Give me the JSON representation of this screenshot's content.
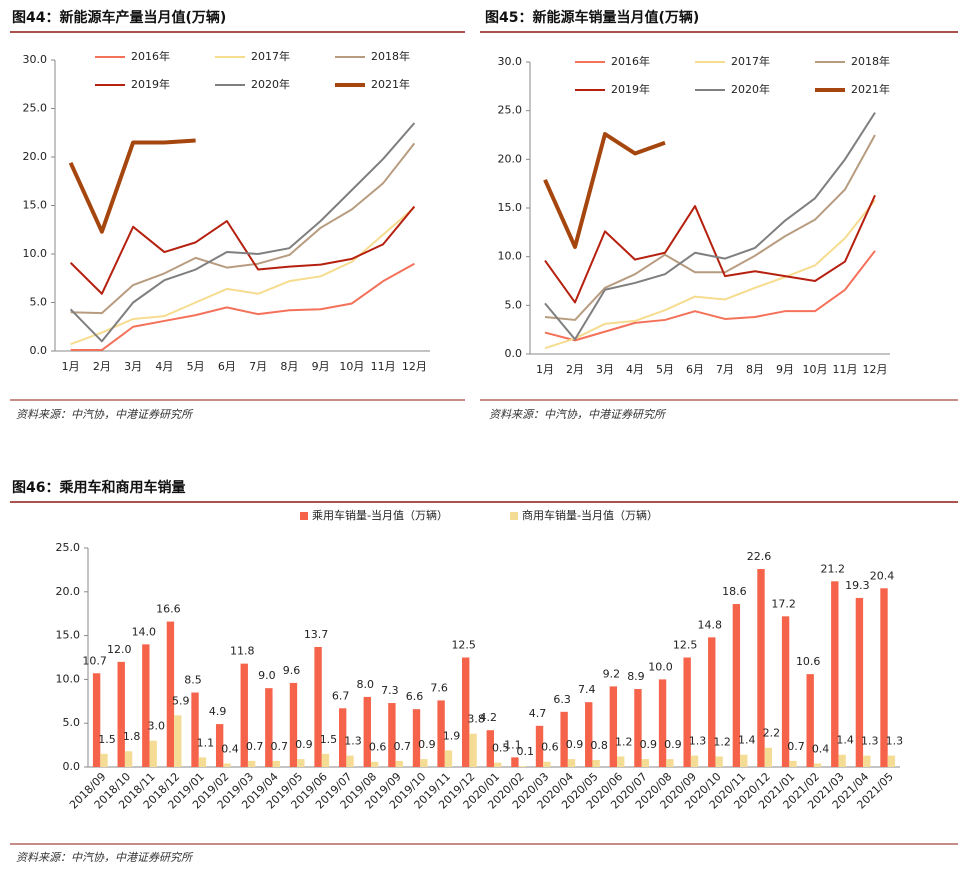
{
  "chart_data": [
    {
      "type": "line",
      "title": "图44：新能源车产量当月值(万辆)",
      "source": "资料来源：中汽协，中港证券研究所",
      "categories": [
        "1月",
        "2月",
        "3月",
        "4月",
        "5月",
        "6月",
        "7月",
        "8月",
        "9月",
        "10月",
        "11月",
        "12月"
      ],
      "ylim": [
        0,
        30
      ],
      "yticks": [
        {
          "value": 0,
          "label": "0.0"
        },
        {
          "value": 5,
          "label": "5.0"
        },
        {
          "value": 10,
          "label": "10.0"
        },
        {
          "value": 15,
          "label": "15.0"
        },
        {
          "value": 20,
          "label": "20.0"
        },
        {
          "value": 25,
          "label": "25.0"
        },
        {
          "value": 30,
          "label": "30.0"
        }
      ],
      "series": [
        {
          "name": "2016年",
          "color": "#f4715a",
          "line_width": 2,
          "values": [
            0.1,
            0.1,
            2.5,
            3.1,
            3.7,
            4.5,
            3.8,
            4.2,
            4.3,
            4.9,
            7.2,
            9.0
          ]
        },
        {
          "name": "2017年",
          "color": "#f6dc8f",
          "line_width": 2,
          "values": [
            0.7,
            1.9,
            3.3,
            3.6,
            5.0,
            6.4,
            5.9,
            7.2,
            7.7,
            9.2,
            12.0,
            14.8
          ]
        },
        {
          "name": "2018年",
          "color": "#b89c80",
          "line_width": 2,
          "values": [
            4.0,
            3.9,
            6.8,
            8.0,
            9.6,
            8.6,
            9.0,
            9.9,
            12.7,
            14.6,
            17.3,
            21.4
          ]
        },
        {
          "name": "2019年",
          "color": "#b5200f",
          "line_width": 2,
          "values": [
            9.1,
            5.9,
            12.8,
            10.2,
            11.2,
            13.4,
            8.4,
            8.7,
            8.9,
            9.5,
            11.0,
            14.9
          ]
        },
        {
          "name": "2020年",
          "color": "#7f7f7f",
          "line_width": 2,
          "values": [
            4.3,
            1.0,
            5.0,
            7.3,
            8.4,
            10.2,
            10.0,
            10.6,
            13.4,
            16.6,
            19.8,
            23.5
          ]
        },
        {
          "name": "2021年",
          "color": "#a5460f",
          "line_width": 4,
          "values": [
            19.4,
            12.3,
            21.5,
            21.5,
            21.7,
            null,
            null,
            null,
            null,
            null,
            null,
            null
          ]
        }
      ]
    },
    {
      "type": "line",
      "title": "图45：新能源车销量当月值(万辆)",
      "source": "资料来源：中汽协，中港证券研究所",
      "categories": [
        "1月",
        "2月",
        "3月",
        "4月",
        "5月",
        "6月",
        "7月",
        "8月",
        "9月",
        "10月",
        "11月",
        "12月"
      ],
      "ylim": [
        0,
        30
      ],
      "yticks": [
        {
          "value": 0,
          "label": "0.0"
        },
        {
          "value": 5,
          "label": "5.0"
        },
        {
          "value": 10,
          "label": "10.0"
        },
        {
          "value": 15,
          "label": "15.0"
        },
        {
          "value": 20,
          "label": "20.0"
        },
        {
          "value": 25,
          "label": "25.0"
        },
        {
          "value": 30,
          "label": "30.0"
        }
      ],
      "series": [
        {
          "name": "2016年",
          "color": "#f4715a",
          "line_width": 2,
          "values": [
            2.2,
            1.4,
            2.3,
            3.2,
            3.5,
            4.4,
            3.6,
            3.8,
            4.4,
            4.4,
            6.6,
            10.6
          ]
        },
        {
          "name": "2017年",
          "color": "#f6dc8f",
          "line_width": 2,
          "values": [
            0.6,
            1.6,
            3.1,
            3.4,
            4.5,
            5.9,
            5.6,
            6.8,
            7.9,
            9.1,
            11.9,
            15.8
          ]
        },
        {
          "name": "2018年",
          "color": "#b89c80",
          "line_width": 2,
          "values": [
            3.8,
            3.5,
            6.8,
            8.2,
            10.2,
            8.4,
            8.4,
            10.1,
            12.1,
            13.8,
            16.9,
            22.5
          ]
        },
        {
          "name": "2019年",
          "color": "#b5200f",
          "line_width": 2,
          "values": [
            9.6,
            5.3,
            12.6,
            9.7,
            10.4,
            15.2,
            8.0,
            8.5,
            8.0,
            7.5,
            9.5,
            16.3
          ]
        },
        {
          "name": "2020年",
          "color": "#7f7f7f",
          "line_width": 2,
          "values": [
            5.2,
            1.5,
            6.6,
            7.3,
            8.2,
            10.4,
            9.8,
            10.9,
            13.7,
            16.0,
            20.0,
            24.8
          ]
        },
        {
          "name": "2021年",
          "color": "#a5460f",
          "line_width": 4,
          "values": [
            17.9,
            11.0,
            22.6,
            20.6,
            21.7,
            null,
            null,
            null,
            null,
            null,
            null,
            null
          ]
        }
      ]
    },
    {
      "type": "bar",
      "title": "图46：乘用车和商用车销量",
      "source": "资料来源：中汽协，中港证券研究所",
      "categories": [
        "2018/09",
        "2018/10",
        "2018/11",
        "2018/12",
        "2019/01",
        "2019/02",
        "2019/03",
        "2019/04",
        "2019/05",
        "2019/06",
        "2019/07",
        "2019/08",
        "2019/09",
        "2019/10",
        "2019/11",
        "2019/12",
        "2020/01",
        "2020/02",
        "2020/03",
        "2020/04",
        "2020/05",
        "2020/06",
        "2020/07",
        "2020/08",
        "2020/09",
        "2020/10",
        "2020/11",
        "2020/12",
        "2021/01",
        "2021/02",
        "2021/03",
        "2021/04",
        "2021/05"
      ],
      "ylim": [
        0,
        25
      ],
      "yticks": [
        {
          "value": 0,
          "label": "0.0"
        },
        {
          "value": 5,
          "label": "5.0"
        },
        {
          "value": 10,
          "label": "10.0"
        },
        {
          "value": 15,
          "label": "15.0"
        },
        {
          "value": 20,
          "label": "20.0"
        },
        {
          "value": 25,
          "label": "25.0"
        }
      ],
      "series": [
        {
          "name": "乘用车销量-当月值（万辆）",
          "color": "#f4634a",
          "values": [
            10.7,
            12.0,
            14.0,
            16.6,
            8.5,
            4.9,
            11.8,
            9.0,
            9.6,
            13.7,
            6.7,
            8.0,
            7.3,
            6.6,
            7.6,
            12.5,
            4.2,
            1.1,
            4.7,
            6.3,
            7.4,
            9.2,
            8.9,
            10.0,
            12.5,
            14.8,
            18.6,
            22.6,
            17.2,
            10.6,
            21.2,
            19.3,
            20.4
          ],
          "value_labels": [
            "10.7",
            "12.0",
            "14.0",
            "16.6",
            "8.5",
            "4.9",
            "11.8",
            "9.0",
            "9.6",
            "13.7",
            "6.7",
            "8.0",
            "7.3",
            "6.6",
            "7.6",
            "12.5",
            "4.2",
            "1.1",
            "4.7",
            "6.3",
            "7.4",
            "9.2",
            "8.9",
            "10.0",
            "12.5",
            "14.8",
            "18.6",
            "22.6",
            "17.2",
            "10.6",
            "21.2",
            "19.3",
            "20.4"
          ]
        },
        {
          "name": "商用车销量-当月值（万辆）",
          "color": "#f5dc95",
          "values": [
            1.5,
            1.8,
            3.0,
            5.9,
            1.1,
            0.4,
            0.7,
            0.7,
            0.9,
            1.5,
            1.3,
            0.6,
            0.7,
            0.9,
            1.9,
            3.8,
            0.5,
            0.1,
            0.6,
            0.9,
            0.8,
            1.2,
            0.9,
            0.9,
            1.3,
            1.2,
            1.4,
            2.2,
            0.7,
            0.4,
            1.4,
            1.3,
            1.3
          ],
          "value_labels": [
            "1.5",
            "1.8",
            "3.0",
            "5.9",
            "1.1",
            "0.4",
            "0.7",
            "0.7",
            "0.9",
            "1.5",
            "1.3",
            "0.6",
            "0.7",
            "0.9",
            "1.9",
            "3.8",
            "0.5",
            "0.1",
            "0.6",
            "0.9",
            "0.8",
            "1.2",
            "0.9",
            "0.9",
            "1.3",
            "1.2",
            "1.4",
            "2.2",
            "0.7",
            "0.4",
            "1.4",
            "1.3",
            "1.3"
          ]
        }
      ]
    }
  ]
}
